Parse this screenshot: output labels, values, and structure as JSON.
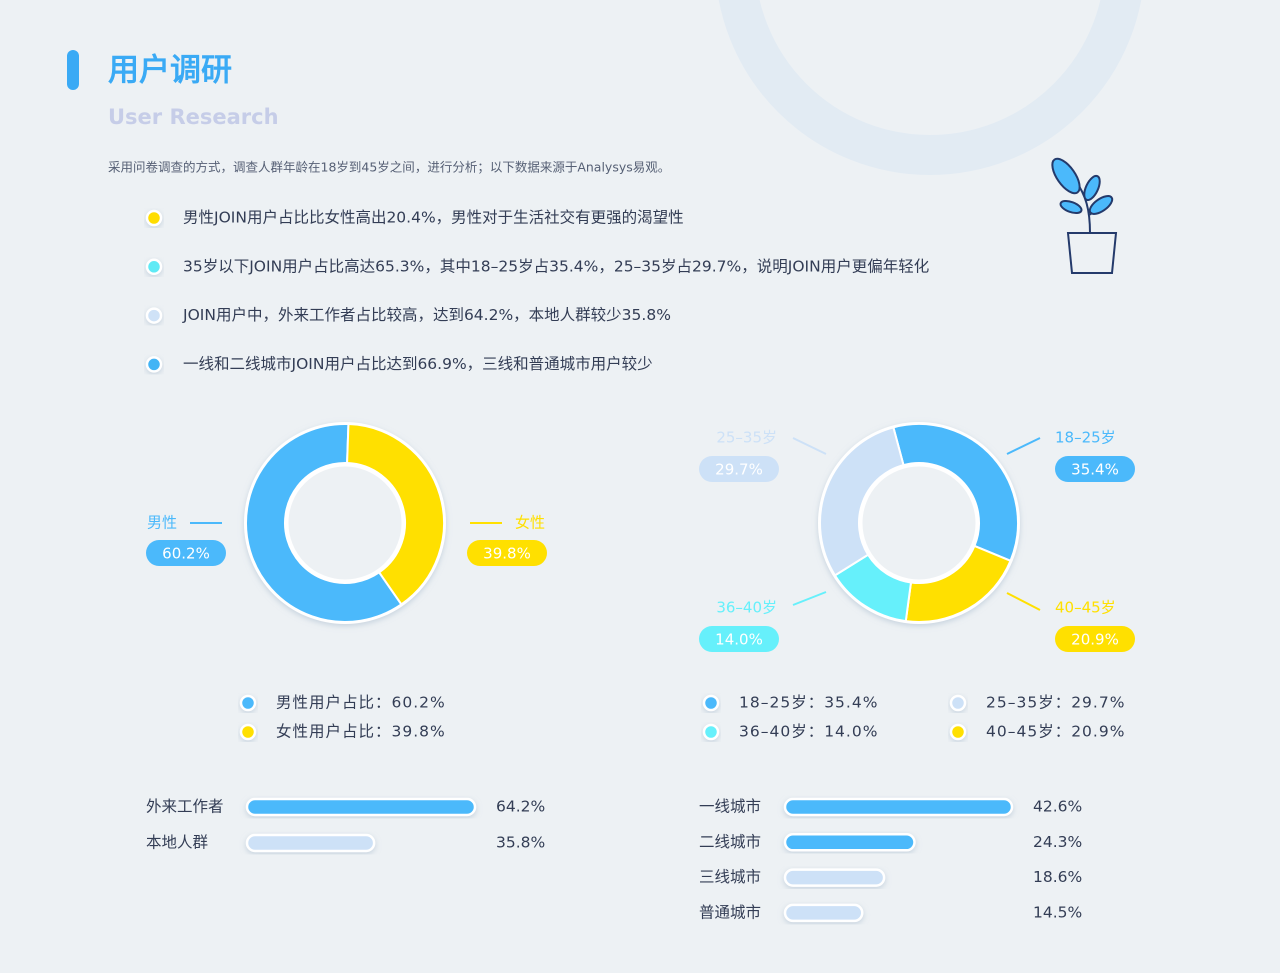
{
  "header": {
    "title": "用户调研",
    "subtitle": "User Research",
    "description": "采用问卷调查的方式，调查人群年龄在18岁到45岁之间，进行分析；以下数据来源于Analysys易观。"
  },
  "bullets": [
    {
      "text": "男性JOIN用户占比比女性高出20.4%，男性对于生活社交有更强的渴望性",
      "color": "#ffdd00"
    },
    {
      "text": "35岁以下JOIN用户占比高达65.3%，其中18–25岁占35.4%，25–35岁占29.7%，说明JOIN用户更偏年轻化",
      "color": "#5eeaf5"
    },
    {
      "text": "JOIN用户中，外来工作者占比较高，达到64.2%，本地人群较少35.8%",
      "color": "#cfe2f7"
    },
    {
      "text": "一线和二线城市JOIN用户占比达到66.9%，三线和普通城市用户较少",
      "color": "#43b4f5"
    }
  ],
  "chart_data": [
    {
      "type": "donut",
      "categories": [
        "男性",
        "女性"
      ],
      "values": [
        60.2,
        39.8
      ],
      "value_labels": [
        "60.2%",
        "39.8%"
      ],
      "colors": [
        "#4bb9fb",
        "#ffe000"
      ],
      "legend": [
        {
          "label": "男性用户占比：60.2%",
          "color": "#4bb9fb"
        },
        {
          "label": "女性用户占比：39.8%",
          "color": "#ffe000"
        }
      ]
    },
    {
      "type": "donut",
      "categories": [
        "18–25岁",
        "40–45岁",
        "36–40岁",
        "25–35岁"
      ],
      "values": [
        35.4,
        20.9,
        14.0,
        29.7
      ],
      "value_labels": [
        "35.4%",
        "20.9%",
        "14.0%",
        "29.7%"
      ],
      "colors": [
        "#4bb9fb",
        "#ffe000",
        "#66f0fb",
        "#cde1f7"
      ],
      "legend": [
        {
          "label": "18–25岁：35.4%",
          "color": "#4bb9fb"
        },
        {
          "label": "25–35岁：29.7%",
          "color": "#cde1f7"
        },
        {
          "label": "36–40岁：14.0%",
          "color": "#66f0fb"
        },
        {
          "label": "40–45岁：20.9%",
          "color": "#ffe000"
        }
      ]
    },
    {
      "type": "hbar",
      "categories": [
        "外来工作者",
        "本地人群"
      ],
      "values": [
        64.2,
        35.8
      ],
      "value_labels": [
        "64.2%",
        "35.8%"
      ],
      "colors": [
        "#4bb9fb",
        "#cde1f7"
      ]
    },
    {
      "type": "hbar",
      "categories": [
        "一线城市",
        "二线城市",
        "三线城市",
        "普通城市"
      ],
      "values": [
        42.6,
        24.3,
        18.6,
        14.5
      ],
      "value_labels": [
        "42.6%",
        "24.3%",
        "18.6%",
        "14.5%"
      ],
      "colors": [
        "#4bb9fb",
        "#4bb9fb",
        "#cde1f7",
        "#cde1f7"
      ]
    }
  ]
}
